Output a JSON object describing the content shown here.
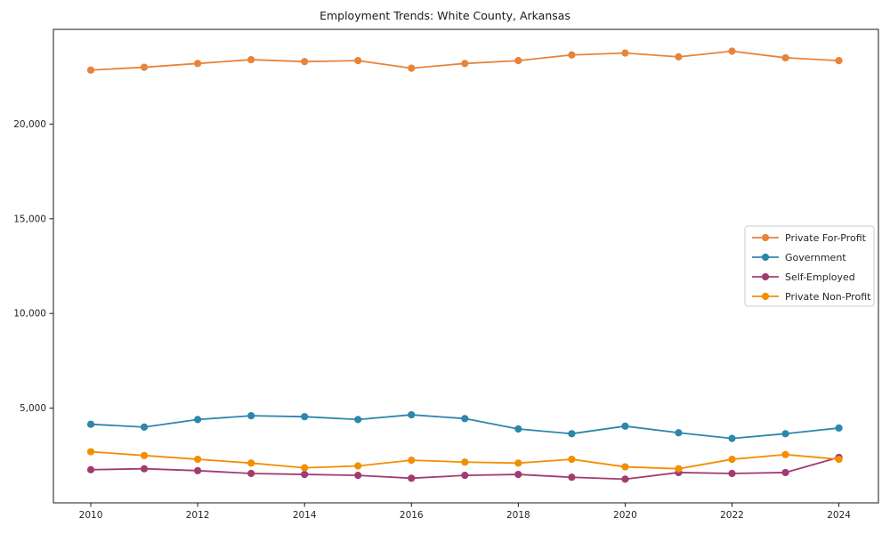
{
  "chart_data": {
    "type": "line",
    "title": "Employment Trends: White County, Arkansas",
    "xlabel": "",
    "ylabel": "",
    "grid": false,
    "legend_position": "center right",
    "xlim": [
      2009.3,
      2024.74
    ],
    "ylim": [
      0,
      25000
    ],
    "x": [
      2010,
      2011,
      2012,
      2013,
      2014,
      2015,
      2016,
      2017,
      2018,
      2019,
      2020,
      2021,
      2022,
      2023,
      2024
    ],
    "x_ticks": [
      {
        "value": 2010,
        "label": "2010"
      },
      {
        "value": 2012,
        "label": "2012"
      },
      {
        "value": 2014,
        "label": "2014"
      },
      {
        "value": 2016,
        "label": "2016"
      },
      {
        "value": 2018,
        "label": "2018"
      },
      {
        "value": 2020,
        "label": "2020"
      },
      {
        "value": 2022,
        "label": "2022"
      },
      {
        "value": 2024,
        "label": "2024"
      }
    ],
    "y_ticks": [
      {
        "value": 5000,
        "label": "5,000"
      },
      {
        "value": 10000,
        "label": "10,000"
      },
      {
        "value": 15000,
        "label": "15,000"
      },
      {
        "value": 20000,
        "label": "20,000"
      }
    ],
    "series": [
      {
        "name": "Private For-Profit",
        "color": "#E8833A",
        "values": [
          22850,
          23000,
          23200,
          23400,
          23300,
          23350,
          22950,
          23200,
          23350,
          23650,
          23750,
          23550,
          23850,
          23500,
          23350
        ]
      },
      {
        "name": "Government",
        "color": "#2E86AB",
        "values": [
          4150,
          4000,
          4400,
          4600,
          4550,
          4400,
          4650,
          4450,
          3900,
          3650,
          4050,
          3700,
          3400,
          3650,
          3950
        ]
      },
      {
        "name": "Self-Employed",
        "color": "#A23B72",
        "values": [
          1750,
          1800,
          1700,
          1550,
          1500,
          1450,
          1300,
          1450,
          1500,
          1350,
          1250,
          1600,
          1550,
          1600,
          2400
        ]
      },
      {
        "name": "Private Non-Profit",
        "color": "#F18F01",
        "values": [
          2700,
          2500,
          2300,
          2100,
          1850,
          1950,
          2250,
          2150,
          2100,
          2300,
          1900,
          1800,
          2300,
          2550,
          2300
        ]
      }
    ]
  }
}
